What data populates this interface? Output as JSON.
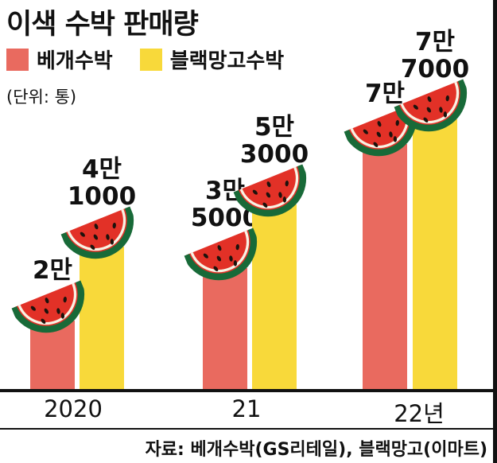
{
  "title": "이색 수박 판매량",
  "unit_note": "(단위: 통)",
  "legend": [
    {
      "label": "베개수박",
      "color": "#e96a5f"
    },
    {
      "label": "블랙망고수박",
      "color": "#f8d93a"
    }
  ],
  "source": "자료: 베개수박(GS리테일), 블랙망고(이마트)",
  "icons": [
    {
      "name": "watermelon-slice-icon",
      "flesh": "#e23127",
      "rind": "#186a38",
      "seed": "#1d120c"
    }
  ],
  "chart_data": {
    "type": "bar",
    "title": "이색 수박 판매량",
    "unit": "통",
    "categories": [
      "2020",
      "21",
      "22년"
    ],
    "series": [
      {
        "name": "베개수박",
        "color": "#e96a5f",
        "values": [
          20000,
          35000,
          70000
        ],
        "labels": [
          "2만",
          "3만\n5000",
          "7만"
        ]
      },
      {
        "name": "블랙망고수박",
        "color": "#f8d93a",
        "values": [
          41000,
          53000,
          77000
        ],
        "labels": [
          "4만\n1000",
          "5만\n3000",
          "7만\n7000"
        ]
      }
    ],
    "ylim": [
      0,
      77000
    ],
    "grid": false,
    "legend_position": "top-left"
  }
}
